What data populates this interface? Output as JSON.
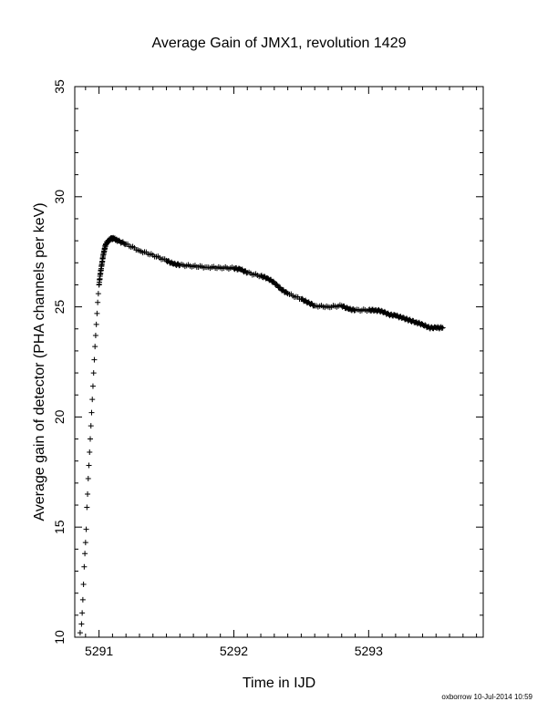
{
  "chart_data": {
    "type": "scatter",
    "title": "Average Gain of JMX1, revolution 1429",
    "xlabel": "Time in IJD",
    "ylabel": "Average gain of detector (PHA channels per keV)",
    "xlim": [
      5290.82,
      5293.85
    ],
    "ylim": [
      10,
      35
    ],
    "x_ticks": [
      5291,
      5292,
      5293
    ],
    "y_ticks": [
      10,
      15,
      20,
      25,
      30,
      35
    ],
    "grid": false,
    "marker": "+",
    "series": [
      {
        "points": [
          [
            5290.86,
            10.2
          ],
          [
            5290.87,
            10.6
          ],
          [
            5290.875,
            11.1
          ],
          [
            5290.88,
            11.7
          ],
          [
            5290.885,
            12.4
          ],
          [
            5290.89,
            13.2
          ],
          [
            5290.895,
            13.8
          ],
          [
            5290.9,
            14.3
          ],
          [
            5290.905,
            14.9
          ],
          [
            5290.91,
            15.9
          ],
          [
            5290.915,
            16.5
          ],
          [
            5290.92,
            17.2
          ],
          [
            5290.925,
            17.8
          ],
          [
            5290.93,
            18.4
          ],
          [
            5290.935,
            19.0
          ],
          [
            5290.94,
            19.6
          ],
          [
            5290.945,
            20.2
          ],
          [
            5290.95,
            20.8
          ],
          [
            5290.955,
            21.4
          ],
          [
            5290.96,
            22.0
          ],
          [
            5290.965,
            22.6
          ],
          [
            5290.97,
            23.2
          ],
          [
            5290.975,
            23.7
          ],
          [
            5290.98,
            24.2
          ],
          [
            5290.985,
            24.7
          ],
          [
            5290.99,
            25.2
          ],
          [
            5290.995,
            25.6
          ],
          [
            5291.0,
            26.0
          ],
          [
            5291.01,
            26.5
          ],
          [
            5291.02,
            26.9
          ],
          [
            5291.03,
            27.3
          ],
          [
            5291.04,
            27.6
          ],
          [
            5291.05,
            27.85
          ],
          [
            5291.07,
            28.0
          ],
          [
            5291.09,
            28.1
          ],
          [
            5291.11,
            28.1
          ],
          [
            5291.14,
            28.0
          ],
          [
            5291.2,
            27.85
          ],
          [
            5291.3,
            27.55
          ],
          [
            5291.4,
            27.35
          ],
          [
            5291.5,
            27.1
          ],
          [
            5291.55,
            26.95
          ],
          [
            5291.6,
            26.9
          ],
          [
            5291.7,
            26.85
          ],
          [
            5291.8,
            26.8
          ],
          [
            5291.9,
            26.78
          ],
          [
            5292.0,
            26.75
          ],
          [
            5292.05,
            26.7
          ],
          [
            5292.1,
            26.55
          ],
          [
            5292.2,
            26.4
          ],
          [
            5292.25,
            26.3
          ],
          [
            5292.3,
            26.1
          ],
          [
            5292.35,
            25.8
          ],
          [
            5292.4,
            25.6
          ],
          [
            5292.5,
            25.35
          ],
          [
            5292.55,
            25.2
          ],
          [
            5292.6,
            25.05
          ],
          [
            5292.7,
            25.0
          ],
          [
            5292.8,
            25.05
          ],
          [
            5292.85,
            24.9
          ],
          [
            5292.9,
            24.85
          ],
          [
            5293.0,
            24.85
          ],
          [
            5293.05,
            24.85
          ],
          [
            5293.1,
            24.8
          ],
          [
            5293.15,
            24.65
          ],
          [
            5293.2,
            24.6
          ],
          [
            5293.25,
            24.5
          ],
          [
            5293.3,
            24.4
          ],
          [
            5293.35,
            24.3
          ],
          [
            5293.4,
            24.2
          ],
          [
            5293.45,
            24.05
          ],
          [
            5293.5,
            24.05
          ],
          [
            5293.55,
            24.05
          ]
        ]
      }
    ]
  },
  "footer": "oxborrow 10-Jul-2014 10:59"
}
